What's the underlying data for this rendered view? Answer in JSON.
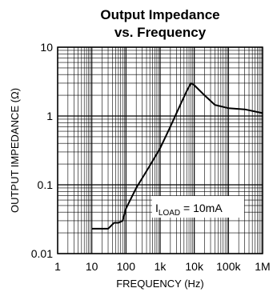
{
  "chart_data": {
    "type": "line",
    "title_line1": "Output Impedance",
    "title_line2": "vs. Frequency",
    "xlabel": "FREQUENCY (Hz)",
    "ylabel": "OUTPUT IMPEDANCE (Ω)",
    "x_scale": "log",
    "y_scale": "log",
    "xlim": [
      1,
      1000000
    ],
    "ylim": [
      0.01,
      10
    ],
    "grid": true,
    "x_ticks": [
      {
        "value": 1,
        "label": "1"
      },
      {
        "value": 10,
        "label": "10"
      },
      {
        "value": 100,
        "label": "100"
      },
      {
        "value": 1000,
        "label": "1k"
      },
      {
        "value": 10000,
        "label": "10k"
      },
      {
        "value": 100000,
        "label": "100k"
      },
      {
        "value": 1000000,
        "label": "1M"
      }
    ],
    "y_ticks": [
      {
        "value": 0.01,
        "label": "0.01"
      },
      {
        "value": 0.1,
        "label": "0.1"
      },
      {
        "value": 1,
        "label": "1"
      },
      {
        "value": 10,
        "label": "10"
      }
    ],
    "annotation": {
      "prefix": "I",
      "subscript": "LOAD",
      "suffix": " = 10mA"
    },
    "series": [
      {
        "values": [
          [
            10,
            0.023
          ],
          [
            30,
            0.023
          ],
          [
            45,
            0.028
          ],
          [
            60,
            0.028
          ],
          [
            80,
            0.03
          ],
          [
            100,
            0.045
          ],
          [
            200,
            0.09
          ],
          [
            500,
            0.19
          ],
          [
            1000,
            0.34
          ],
          [
            2000,
            0.7
          ],
          [
            4000,
            1.5
          ],
          [
            6000,
            2.3
          ],
          [
            8000,
            3.0
          ],
          [
            10000,
            2.8
          ],
          [
            20000,
            2.0
          ],
          [
            40000,
            1.45
          ],
          [
            100000,
            1.3
          ],
          [
            300000,
            1.25
          ],
          [
            1000000,
            1.1
          ]
        ]
      }
    ]
  }
}
